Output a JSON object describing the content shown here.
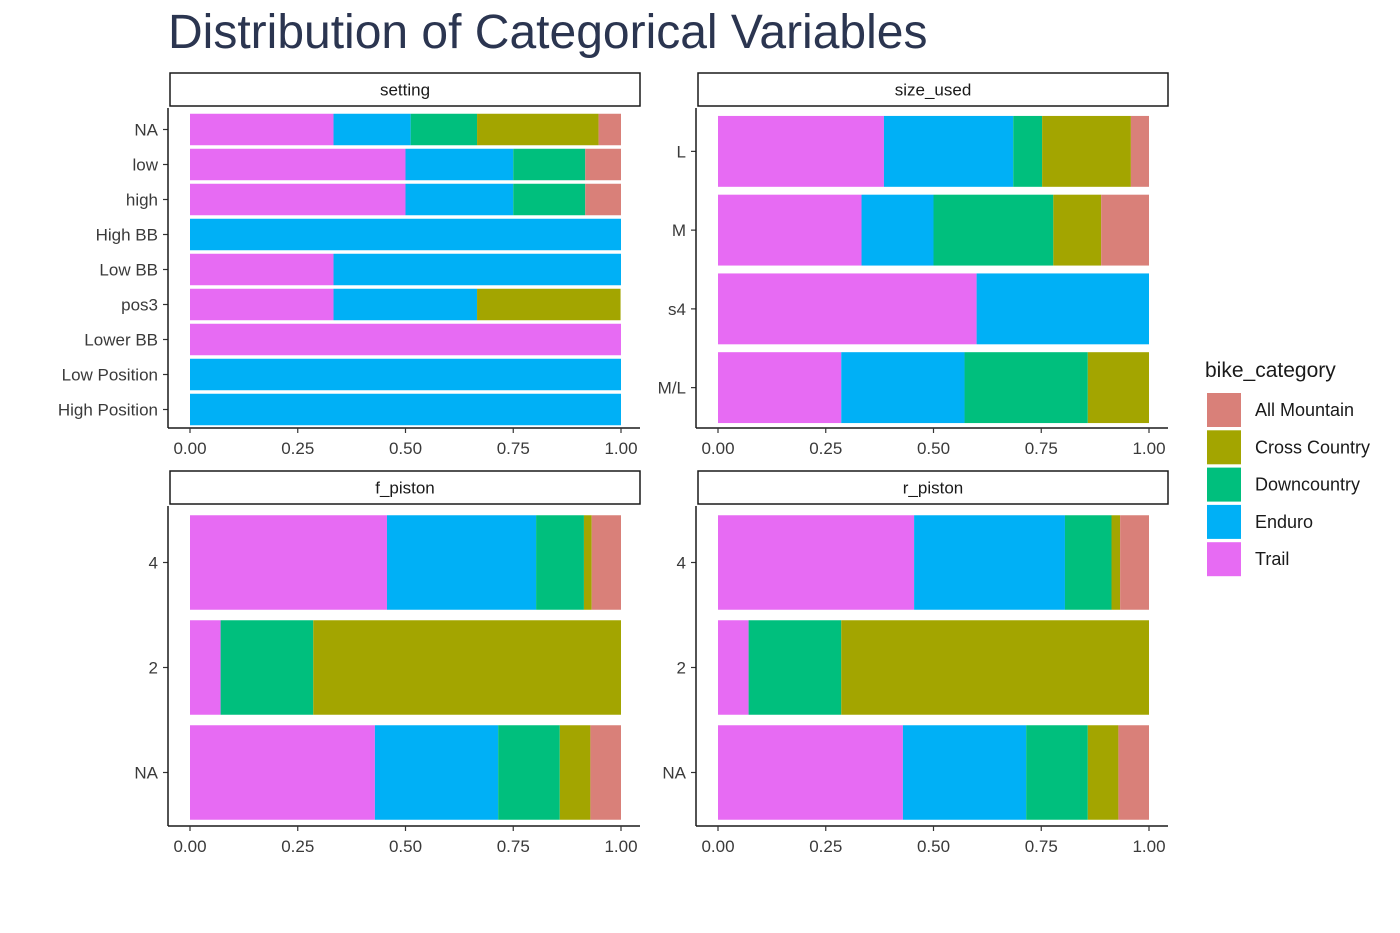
{
  "title": "Distribution of Categorical Variables",
  "legend": {
    "title": "bike_category",
    "items": [
      {
        "label": "All Mountain",
        "color": "#d98079"
      },
      {
        "label": "Cross Country",
        "color": "#a3a500"
      },
      {
        "label": "Downcountry",
        "color": "#00bf7d"
      },
      {
        "label": "Enduro",
        "color": "#00b0f6"
      },
      {
        "label": "Trail",
        "color": "#e76bf3"
      }
    ]
  },
  "chart_data": [
    {
      "type": "bar",
      "orientation": "horizontal",
      "stacking": "fill",
      "facet": "setting",
      "categories": [
        "NA",
        "low",
        "high",
        "High BB",
        "Low BB",
        "pos3",
        "Lower BB",
        "Low Position",
        "High Position"
      ],
      "series": [
        {
          "name": "Trail",
          "values": [
            0.333,
            0.5,
            0.5,
            0,
            0.333,
            0.333,
            1,
            0,
            0
          ]
        },
        {
          "name": "Enduro",
          "values": [
            0.179,
            0.25,
            0.25,
            1,
            0.667,
            0.333,
            0,
            1,
            1
          ]
        },
        {
          "name": "Downcountry",
          "values": [
            0.154,
            0.167,
            0.167,
            0,
            0,
            0,
            0,
            0,
            0
          ]
        },
        {
          "name": "Cross Country",
          "values": [
            0.282,
            0,
            0,
            0,
            0,
            0.333,
            0,
            0,
            0
          ]
        },
        {
          "name": "All Mountain",
          "values": [
            0.052,
            0.083,
            0.083,
            0,
            0,
            0,
            0,
            0,
            0
          ]
        }
      ],
      "xlim": [
        0,
        1
      ],
      "xticks": [
        "0.00",
        "0.25",
        "0.50",
        "0.75",
        "1.00"
      ]
    },
    {
      "type": "bar",
      "orientation": "horizontal",
      "stacking": "fill",
      "facet": "size_used",
      "categories": [
        "L",
        "M",
        "s4",
        "M/L"
      ],
      "series": [
        {
          "name": "Trail",
          "values": [
            0.385,
            0.333,
            0.6,
            0.286
          ]
        },
        {
          "name": "Enduro",
          "values": [
            0.3,
            0.167,
            0.4,
            0.286
          ]
        },
        {
          "name": "Downcountry",
          "values": [
            0.067,
            0.278,
            0,
            0.286
          ]
        },
        {
          "name": "Cross Country",
          "values": [
            0.206,
            0.111,
            0,
            0.142
          ]
        },
        {
          "name": "All Mountain",
          "values": [
            0.042,
            0.111,
            0,
            0
          ]
        }
      ],
      "xlim": [
        0,
        1
      ],
      "xticks": [
        "0.00",
        "0.25",
        "0.50",
        "0.75",
        "1.00"
      ]
    },
    {
      "type": "bar",
      "orientation": "horizontal",
      "stacking": "fill",
      "facet": "f_piston",
      "categories": [
        "4",
        "2",
        "NA"
      ],
      "series": [
        {
          "name": "Trail",
          "values": [
            0.457,
            0.071,
            0.429
          ]
        },
        {
          "name": "Enduro",
          "values": [
            0.346,
            0,
            0.286
          ]
        },
        {
          "name": "Downcountry",
          "values": [
            0.111,
            0.215,
            0.143
          ]
        },
        {
          "name": "Cross Country",
          "values": [
            0.018,
            0.714,
            0.071
          ]
        },
        {
          "name": "All Mountain",
          "values": [
            0.068,
            0,
            0.071
          ]
        }
      ],
      "xlim": [
        0,
        1
      ],
      "xticks": [
        "0.00",
        "0.25",
        "0.50",
        "0.75",
        "1.00"
      ]
    },
    {
      "type": "bar",
      "orientation": "horizontal",
      "stacking": "fill",
      "facet": "r_piston",
      "categories": [
        "4",
        "2",
        "NA"
      ],
      "series": [
        {
          "name": "Trail",
          "values": [
            0.455,
            0.071,
            0.429
          ]
        },
        {
          "name": "Enduro",
          "values": [
            0.35,
            0,
            0.286
          ]
        },
        {
          "name": "Downcountry",
          "values": [
            0.108,
            0.215,
            0.143
          ]
        },
        {
          "name": "Cross Country",
          "values": [
            0.02,
            0.714,
            0.071
          ]
        },
        {
          "name": "All Mountain",
          "values": [
            0.067,
            0,
            0.071
          ]
        }
      ],
      "xlim": [
        0,
        1
      ],
      "xticks": [
        "0.00",
        "0.25",
        "0.50",
        "0.75",
        "1.00"
      ]
    }
  ]
}
